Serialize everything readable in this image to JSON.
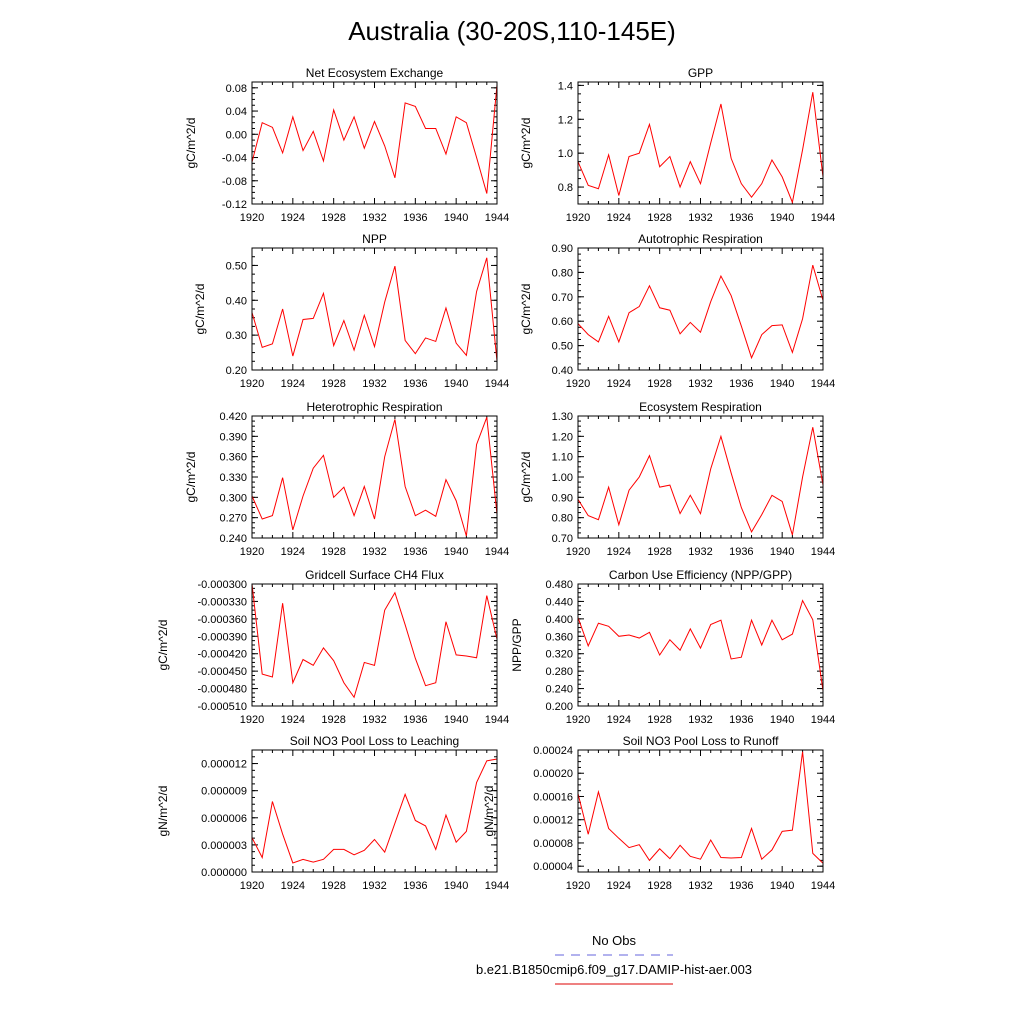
{
  "page_title": "Australia (30-20S,110-145E)",
  "legend": {
    "entries": [
      {
        "label": "No Obs",
        "color": "#6666dd",
        "dash": "dashed"
      },
      {
        "label": "b.e21.B1850cmip6.f09_g17.DAMIP-hist-aer.003",
        "color": "#dd0000",
        "dash": "solid"
      }
    ]
  },
  "colors": {
    "series": "#ff0000",
    "axis": "#000000"
  },
  "chart_data": [
    {
      "type": "line",
      "title": "Net Ecosystem Exchange",
      "ylabel": "gC/m^2/d",
      "xlim": [
        1920,
        1944
      ],
      "ylim": [
        -0.12,
        0.09
      ],
      "xticks": [
        "1920",
        "1924",
        "1928",
        "1932",
        "1936",
        "1940",
        "1944"
      ],
      "yticks": [
        "-0.12",
        "-0.08",
        "-0.04",
        "0.00",
        "0.04",
        "0.08"
      ],
      "x": [
        1920,
        1921,
        1922,
        1923,
        1924,
        1925,
        1926,
        1927,
        1928,
        1929,
        1930,
        1931,
        1932,
        1933,
        1934,
        1935,
        1936,
        1937,
        1938,
        1939,
        1940,
        1941,
        1942,
        1943,
        1944
      ],
      "series": [
        {
          "values": [
            -0.048,
            0.02,
            0.012,
            -0.032,
            0.03,
            -0.028,
            0.005,
            -0.046,
            0.042,
            -0.01,
            0.03,
            -0.024,
            0.022,
            -0.02,
            -0.075,
            0.054,
            0.048,
            0.01,
            0.01,
            -0.034,
            0.03,
            0.02,
            -0.04,
            -0.102,
            0.085
          ]
        }
      ]
    },
    {
      "type": "line",
      "title": "GPP",
      "ylabel": "gC/m^2/d",
      "xlim": [
        1920,
        1944
      ],
      "ylim": [
        0.7,
        1.42
      ],
      "xticks": [
        "1920",
        "1924",
        "1928",
        "1932",
        "1936",
        "1940",
        "1944"
      ],
      "yticks": [
        "0.8",
        "1.0",
        "1.2",
        "1.4"
      ],
      "x": [
        1920,
        1921,
        1922,
        1923,
        1924,
        1925,
        1926,
        1927,
        1928,
        1929,
        1930,
        1931,
        1932,
        1933,
        1934,
        1935,
        1936,
        1937,
        1938,
        1939,
        1940,
        1941,
        1942,
        1943,
        1944
      ],
      "series": [
        {
          "values": [
            0.95,
            0.81,
            0.79,
            0.99,
            0.75,
            0.98,
            1.0,
            1.17,
            0.92,
            0.98,
            0.8,
            0.95,
            0.82,
            1.06,
            1.29,
            0.97,
            0.82,
            0.74,
            0.82,
            0.96,
            0.86,
            0.71,
            1.02,
            1.36,
            0.86
          ]
        }
      ]
    },
    {
      "type": "line",
      "title": "NPP",
      "ylabel": "gC/m^2/d",
      "xlim": [
        1920,
        1944
      ],
      "ylim": [
        0.2,
        0.55
      ],
      "xticks": [
        "1920",
        "1924",
        "1928",
        "1932",
        "1936",
        "1940",
        "1944"
      ],
      "yticks": [
        "0.20",
        "0.30",
        "0.40",
        "0.50"
      ],
      "x": [
        1920,
        1921,
        1922,
        1923,
        1924,
        1925,
        1926,
        1927,
        1928,
        1929,
        1930,
        1931,
        1932,
        1933,
        1934,
        1935,
        1936,
        1937,
        1938,
        1939,
        1940,
        1941,
        1942,
        1943,
        1944
      ],
      "series": [
        {
          "values": [
            0.365,
            0.265,
            0.275,
            0.375,
            0.24,
            0.345,
            0.348,
            0.42,
            0.27,
            0.342,
            0.257,
            0.357,
            0.267,
            0.395,
            0.498,
            0.285,
            0.247,
            0.292,
            0.282,
            0.378,
            0.277,
            0.242,
            0.425,
            0.522,
            0.225
          ]
        }
      ]
    },
    {
      "type": "line",
      "title": "Autotrophic Respiration",
      "ylabel": "gC/m^2/d",
      "xlim": [
        1920,
        1944
      ],
      "ylim": [
        0.4,
        0.9
      ],
      "xticks": [
        "1920",
        "1924",
        "1928",
        "1932",
        "1936",
        "1940",
        "1944"
      ],
      "yticks": [
        "0.40",
        "0.50",
        "0.60",
        "0.70",
        "0.80",
        "0.90"
      ],
      "x": [
        1920,
        1921,
        1922,
        1923,
        1924,
        1925,
        1926,
        1927,
        1928,
        1929,
        1930,
        1931,
        1932,
        1933,
        1934,
        1935,
        1936,
        1937,
        1938,
        1939,
        1940,
        1941,
        1942,
        1943,
        1944
      ],
      "series": [
        {
          "values": [
            0.59,
            0.545,
            0.515,
            0.62,
            0.515,
            0.635,
            0.66,
            0.745,
            0.655,
            0.645,
            0.548,
            0.595,
            0.555,
            0.68,
            0.785,
            0.705,
            0.58,
            0.45,
            0.545,
            0.582,
            0.585,
            0.472,
            0.61,
            0.83,
            0.685
          ]
        }
      ]
    },
    {
      "type": "line",
      "title": "Heterotrophic Respiration",
      "ylabel": "gC/m^2/d",
      "xlim": [
        1920,
        1944
      ],
      "ylim": [
        0.24,
        0.42
      ],
      "xticks": [
        "1920",
        "1924",
        "1928",
        "1932",
        "1936",
        "1940",
        "1944"
      ],
      "yticks": [
        "0.240",
        "0.270",
        "0.300",
        "0.330",
        "0.360",
        "0.390",
        "0.420"
      ],
      "x": [
        1920,
        1921,
        1922,
        1923,
        1924,
        1925,
        1926,
        1927,
        1928,
        1929,
        1930,
        1931,
        1932,
        1933,
        1934,
        1935,
        1936,
        1937,
        1938,
        1939,
        1940,
        1941,
        1942,
        1943,
        1944
      ],
      "series": [
        {
          "values": [
            0.302,
            0.268,
            0.273,
            0.329,
            0.252,
            0.302,
            0.343,
            0.362,
            0.3,
            0.315,
            0.273,
            0.316,
            0.268,
            0.36,
            0.415,
            0.316,
            0.273,
            0.281,
            0.272,
            0.326,
            0.295,
            0.243,
            0.378,
            0.418,
            0.275
          ]
        }
      ]
    },
    {
      "type": "line",
      "title": "Ecosystem Respiration",
      "ylabel": "gC/m^2/d",
      "xlim": [
        1920,
        1944
      ],
      "ylim": [
        0.7,
        1.3
      ],
      "xticks": [
        "1920",
        "1924",
        "1928",
        "1932",
        "1936",
        "1940",
        "1944"
      ],
      "yticks": [
        "0.70",
        "0.80",
        "0.90",
        "1.00",
        "1.10",
        "1.20",
        "1.30"
      ],
      "x": [
        1920,
        1921,
        1922,
        1923,
        1924,
        1925,
        1926,
        1927,
        1928,
        1929,
        1930,
        1931,
        1932,
        1933,
        1934,
        1935,
        1936,
        1937,
        1938,
        1939,
        1940,
        1941,
        1942,
        1943,
        1944
      ],
      "series": [
        {
          "values": [
            0.89,
            0.81,
            0.79,
            0.95,
            0.765,
            0.935,
            1.0,
            1.105,
            0.95,
            0.96,
            0.82,
            0.91,
            0.82,
            1.04,
            1.2,
            1.02,
            0.85,
            0.73,
            0.815,
            0.91,
            0.88,
            0.715,
            1.0,
            1.245,
            0.96
          ]
        }
      ]
    },
    {
      "type": "line",
      "title": "Gridcell Surface CH4 Flux",
      "ylabel": "gC/m^2/d",
      "xlim": [
        1920,
        1944
      ],
      "ylim": [
        -0.00051,
        -0.0003
      ],
      "xticks": [
        "1920",
        "1924",
        "1928",
        "1932",
        "1936",
        "1940",
        "1944"
      ],
      "yticks": [
        "-0.000510",
        "-0.000480",
        "-0.000450",
        "-0.000420",
        "-0.000390",
        "-0.000360",
        "-0.000330",
        "-0.000300"
      ],
      "x": [
        1920,
        1921,
        1922,
        1923,
        1924,
        1925,
        1926,
        1927,
        1928,
        1929,
        1930,
        1931,
        1932,
        1933,
        1934,
        1935,
        1936,
        1937,
        1938,
        1939,
        1940,
        1941,
        1942,
        1943,
        1944
      ],
      "series": [
        {
          "values": [
            -0.0003,
            -0.000455,
            -0.00046,
            -0.000333,
            -0.00047,
            -0.00043,
            -0.00044,
            -0.00041,
            -0.000432,
            -0.00047,
            -0.000495,
            -0.000435,
            -0.00044,
            -0.000345,
            -0.000315,
            -0.00037,
            -0.000428,
            -0.000475,
            -0.00047,
            -0.000365,
            -0.000422,
            -0.000424,
            -0.000427,
            -0.00032,
            -0.000395
          ]
        }
      ]
    },
    {
      "type": "line",
      "title": "Carbon Use Efficiency (NPP/GPP)",
      "ylabel": "NPP/GPP",
      "xlim": [
        1920,
        1944
      ],
      "ylim": [
        0.2,
        0.48
      ],
      "xticks": [
        "1920",
        "1924",
        "1928",
        "1932",
        "1936",
        "1940",
        "1944"
      ],
      "yticks": [
        "0.200",
        "0.240",
        "0.280",
        "0.320",
        "0.360",
        "0.400",
        "0.440",
        "0.480"
      ],
      "x": [
        1920,
        1921,
        1922,
        1923,
        1924,
        1925,
        1926,
        1927,
        1928,
        1929,
        1930,
        1931,
        1932,
        1933,
        1934,
        1935,
        1936,
        1937,
        1938,
        1939,
        1940,
        1941,
        1942,
        1943,
        1944
      ],
      "series": [
        {
          "values": [
            0.403,
            0.338,
            0.39,
            0.383,
            0.36,
            0.363,
            0.356,
            0.369,
            0.317,
            0.352,
            0.328,
            0.377,
            0.333,
            0.387,
            0.397,
            0.308,
            0.312,
            0.397,
            0.34,
            0.397,
            0.352,
            0.365,
            0.442,
            0.398,
            0.235
          ]
        }
      ]
    },
    {
      "type": "line",
      "title": "Soil NO3 Pool Loss to Leaching",
      "ylabel": "gN/m^2/d",
      "xlim": [
        1920,
        1944
      ],
      "ylim": [
        0,
        1.35e-05
      ],
      "xticks": [
        "1920",
        "1924",
        "1928",
        "1932",
        "1936",
        "1940",
        "1944"
      ],
      "yticks": [
        "0.000000",
        "0.000003",
        "0.000006",
        "0.000009",
        "0.000012"
      ],
      "x": [
        1920,
        1921,
        1922,
        1923,
        1924,
        1925,
        1926,
        1927,
        1928,
        1929,
        1930,
        1931,
        1932,
        1933,
        1934,
        1935,
        1936,
        1937,
        1938,
        1939,
        1940,
        1941,
        1942,
        1943,
        1944
      ],
      "series": [
        {
          "values": [
            3.8e-06,
            1.6e-06,
            7.8e-06,
            4.2e-06,
            1e-06,
            1.4e-06,
            1.1e-06,
            1.4e-06,
            2.5e-06,
            2.5e-06,
            1.9e-06,
            2.4e-06,
            3.6e-06,
            2.2e-06,
            5.4e-06,
            8.6e-06,
            5.7e-06,
            5.1e-06,
            2.5e-06,
            6.3e-06,
            3.3e-06,
            4.5e-06,
            9.9e-06,
            1.23e-05,
            1.25e-05
          ]
        }
      ]
    },
    {
      "type": "line",
      "title": "Soil NO3 Pool Loss to Runoff",
      "ylabel": "gN/m^2/d",
      "xlim": [
        1920,
        1944
      ],
      "ylim": [
        3e-05,
        0.00024
      ],
      "xticks": [
        "1920",
        "1924",
        "1928",
        "1932",
        "1936",
        "1940",
        "1944"
      ],
      "yticks": [
        "0.00004",
        "0.00008",
        "0.00012",
        "0.00016",
        "0.00020",
        "0.00024"
      ],
      "x": [
        1920,
        1921,
        1922,
        1923,
        1924,
        1925,
        1926,
        1927,
        1928,
        1929,
        1930,
        1931,
        1932,
        1933,
        1934,
        1935,
        1936,
        1937,
        1938,
        1939,
        1940,
        1941,
        1942,
        1943,
        1944
      ],
      "series": [
        {
          "values": [
            0.000165,
            9.5e-05,
            0.000168,
            0.000105,
            8.8e-05,
            7.2e-05,
            7.7e-05,
            5e-05,
            7e-05,
            5.3e-05,
            7.6e-05,
            5.7e-05,
            5.2e-05,
            8.5e-05,
            5.5e-05,
            5.4e-05,
            5.5e-05,
            0.000105,
            5.2e-05,
            6.8e-05,
            0.0001,
            0.000102,
            0.000237,
            6.2e-05,
            4.5e-05
          ]
        }
      ]
    }
  ]
}
